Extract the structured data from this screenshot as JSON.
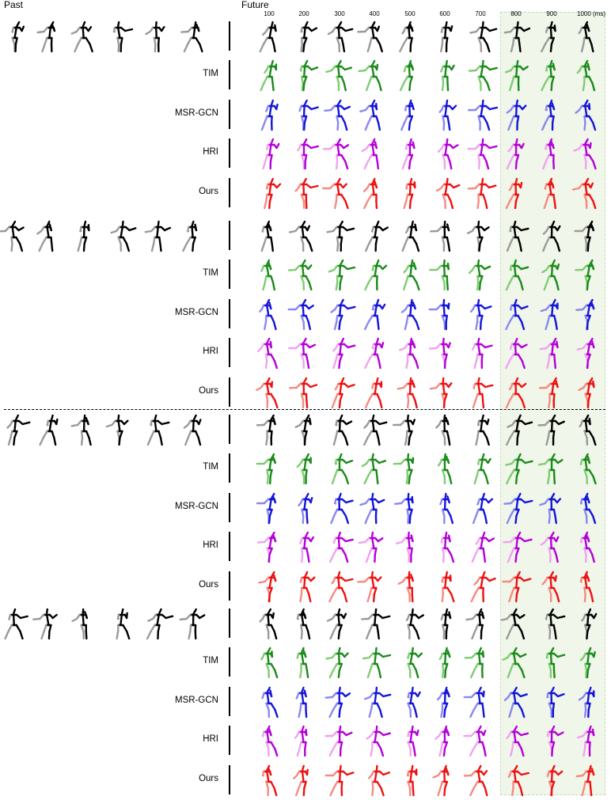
{
  "figure": {
    "past_label": "Past",
    "future_label": "Future",
    "time_ticks": [
      "100",
      "200",
      "300",
      "400",
      "500",
      "600",
      "700",
      "800",
      "900",
      "1000 (ms)"
    ]
  },
  "methods": [
    "TIM",
    "MSR-GCN",
    "HRI",
    "Ours"
  ],
  "colors": {
    "ground_truth": {
      "dark": "#000000",
      "light": "#9a9a9a"
    },
    "TIM": {
      "dark": "#1a8a1a",
      "light": "#7fcc72"
    },
    "MSR-GCN": {
      "dark": "#1515d8",
      "light": "#8888f0"
    },
    "HRI": {
      "dark": "#b400d8",
      "light": "#f0a2f0"
    },
    "Ours": {
      "dark": "#ee1111",
      "light": "#f58a80"
    },
    "long_term_band": "#f0f6ea"
  },
  "groups": [
    {
      "past_frames": 6,
      "future_frames": 10
    },
    {
      "past_frames": 6,
      "future_frames": 10
    },
    {
      "past_frames": 6,
      "future_frames": 10
    },
    {
      "past_frames": 6,
      "future_frames": 10
    }
  ]
}
